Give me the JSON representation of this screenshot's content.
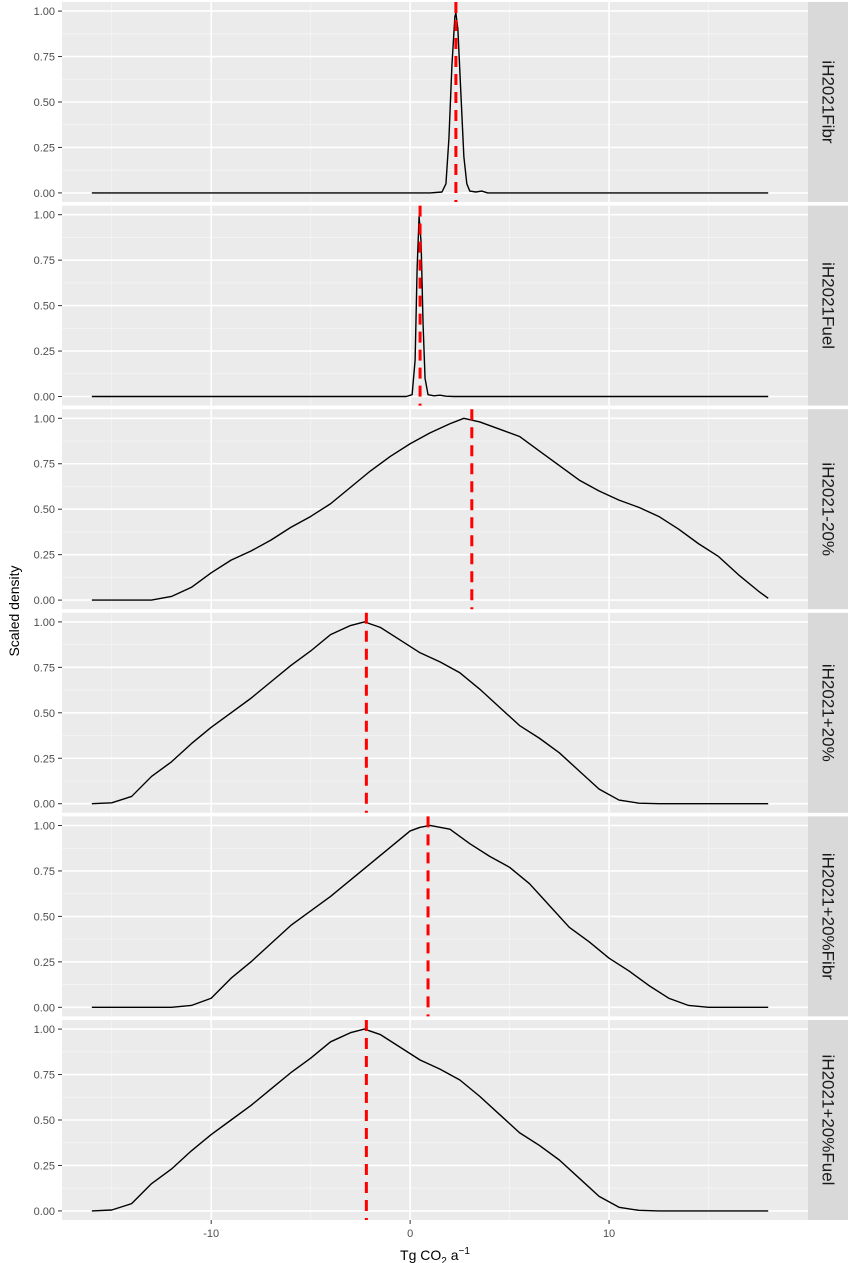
{
  "chart_data": {
    "type": "line",
    "ylabel": "Scaled density",
    "xlabel": {
      "base": "Tg CO",
      "sub": "2",
      "mid": " a",
      "sup": "−1"
    },
    "xlim": [
      -17.5,
      20
    ],
    "ylim": [
      -0.05,
      1.05
    ],
    "x_ticks": [
      -10,
      0,
      10
    ],
    "x_tick_labels": [
      "-10",
      "0",
      "10"
    ],
    "y_ticks": [
      0,
      0.25,
      0.5,
      0.75,
      1.0
    ],
    "y_tick_labels": [
      "0.00",
      "0.25",
      "0.50",
      "0.75",
      "1.00"
    ],
    "grid": true,
    "line_color": "#000000",
    "marker_color": "#ff0000",
    "panel_bg": "#ebebeb",
    "strip_bg": "#d9d9d9",
    "panels": [
      {
        "name": "iH2021Fibr",
        "marker_x": 2.3,
        "points": [
          [
            -16,
            0
          ],
          [
            1,
            0
          ],
          [
            1.6,
            0.005
          ],
          [
            1.8,
            0.05
          ],
          [
            1.95,
            0.3
          ],
          [
            2.1,
            0.7
          ],
          [
            2.25,
            0.97
          ],
          [
            2.3,
            0.99
          ],
          [
            2.4,
            0.9
          ],
          [
            2.55,
            0.55
          ],
          [
            2.7,
            0.2
          ],
          [
            2.85,
            0.05
          ],
          [
            3.0,
            0.01
          ],
          [
            3.3,
            0.005
          ],
          [
            3.6,
            0.01
          ],
          [
            3.9,
            0
          ],
          [
            18,
            0
          ]
        ]
      },
      {
        "name": "iH2021Fuel",
        "marker_x": 0.5,
        "points": [
          [
            -16,
            0
          ],
          [
            -0.2,
            0
          ],
          [
            0.1,
            0.01
          ],
          [
            0.25,
            0.2
          ],
          [
            0.35,
            0.7
          ],
          [
            0.45,
            0.99
          ],
          [
            0.55,
            0.85
          ],
          [
            0.65,
            0.4
          ],
          [
            0.75,
            0.1
          ],
          [
            0.9,
            0.01
          ],
          [
            1.2,
            0.004
          ],
          [
            1.5,
            0.007
          ],
          [
            1.8,
            0.002
          ],
          [
            2.2,
            0
          ],
          [
            18,
            0
          ]
        ]
      },
      {
        "name": "iH2021-20%",
        "marker_x": 3.1,
        "points": [
          [
            -16,
            0
          ],
          [
            -13,
            0
          ],
          [
            -12,
            0.02
          ],
          [
            -11,
            0.07
          ],
          [
            -10,
            0.15
          ],
          [
            -9,
            0.22
          ],
          [
            -8,
            0.27
          ],
          [
            -7,
            0.33
          ],
          [
            -6,
            0.4
          ],
          [
            -5,
            0.46
          ],
          [
            -4,
            0.53
          ],
          [
            -3,
            0.62
          ],
          [
            -2,
            0.71
          ],
          [
            -1,
            0.79
          ],
          [
            0,
            0.86
          ],
          [
            1,
            0.92
          ],
          [
            2,
            0.97
          ],
          [
            2.7,
            1.0
          ],
          [
            3.5,
            0.98
          ],
          [
            4.5,
            0.94
          ],
          [
            5.5,
            0.9
          ],
          [
            6.5,
            0.82
          ],
          [
            7.5,
            0.74
          ],
          [
            8.5,
            0.66
          ],
          [
            9.5,
            0.6
          ],
          [
            10.5,
            0.55
          ],
          [
            11.5,
            0.51
          ],
          [
            12.5,
            0.46
          ],
          [
            13.5,
            0.39
          ],
          [
            14.5,
            0.31
          ],
          [
            15.5,
            0.24
          ],
          [
            16.5,
            0.14
          ],
          [
            17.5,
            0.05
          ],
          [
            18,
            0.01
          ]
        ]
      },
      {
        "name": "iH2021+20%",
        "marker_x": -2.2,
        "points": [
          [
            -16,
            0
          ],
          [
            -15,
            0.005
          ],
          [
            -14,
            0.04
          ],
          [
            -13,
            0.15
          ],
          [
            -12,
            0.23
          ],
          [
            -11,
            0.33
          ],
          [
            -10,
            0.42
          ],
          [
            -9,
            0.5
          ],
          [
            -8,
            0.58
          ],
          [
            -7,
            0.67
          ],
          [
            -6,
            0.76
          ],
          [
            -5,
            0.84
          ],
          [
            -4,
            0.93
          ],
          [
            -3,
            0.98
          ],
          [
            -2.3,
            1.0
          ],
          [
            -1.5,
            0.97
          ],
          [
            -0.5,
            0.9
          ],
          [
            0.5,
            0.83
          ],
          [
            1.5,
            0.78
          ],
          [
            2.5,
            0.72
          ],
          [
            3.5,
            0.63
          ],
          [
            4.5,
            0.53
          ],
          [
            5.5,
            0.43
          ],
          [
            6.5,
            0.36
          ],
          [
            7.5,
            0.28
          ],
          [
            8.5,
            0.18
          ],
          [
            9.5,
            0.08
          ],
          [
            10.5,
            0.02
          ],
          [
            11.5,
            0.003
          ],
          [
            12.5,
            0
          ],
          [
            18,
            0
          ]
        ]
      },
      {
        "name": "iH2021+20%Fibr",
        "marker_x": 0.9,
        "points": [
          [
            -16,
            0
          ],
          [
            -12,
            0
          ],
          [
            -11,
            0.01
          ],
          [
            -10,
            0.05
          ],
          [
            -9,
            0.16
          ],
          [
            -8,
            0.25
          ],
          [
            -7,
            0.35
          ],
          [
            -6,
            0.45
          ],
          [
            -5,
            0.53
          ],
          [
            -4,
            0.61
          ],
          [
            -3,
            0.7
          ],
          [
            -2,
            0.79
          ],
          [
            -1,
            0.88
          ],
          [
            0,
            0.97
          ],
          [
            0.5,
            0.99
          ],
          [
            1,
            1.0
          ],
          [
            2,
            0.98
          ],
          [
            3,
            0.9
          ],
          [
            4,
            0.83
          ],
          [
            5,
            0.77
          ],
          [
            6,
            0.68
          ],
          [
            7,
            0.56
          ],
          [
            8,
            0.44
          ],
          [
            9,
            0.36
          ],
          [
            10,
            0.27
          ],
          [
            11,
            0.2
          ],
          [
            12,
            0.12
          ],
          [
            13,
            0.05
          ],
          [
            14,
            0.01
          ],
          [
            15,
            0
          ],
          [
            18,
            0
          ]
        ]
      },
      {
        "name": "iH2021+20%Fuel",
        "marker_x": -2.2,
        "points": [
          [
            -16,
            0
          ],
          [
            -15,
            0.005
          ],
          [
            -14,
            0.04
          ],
          [
            -13,
            0.15
          ],
          [
            -12,
            0.23
          ],
          [
            -11,
            0.33
          ],
          [
            -10,
            0.42
          ],
          [
            -9,
            0.5
          ],
          [
            -8,
            0.58
          ],
          [
            -7,
            0.67
          ],
          [
            -6,
            0.76
          ],
          [
            -5,
            0.84
          ],
          [
            -4,
            0.93
          ],
          [
            -3,
            0.98
          ],
          [
            -2.3,
            1.0
          ],
          [
            -1.5,
            0.97
          ],
          [
            -0.5,
            0.9
          ],
          [
            0.5,
            0.83
          ],
          [
            1.5,
            0.78
          ],
          [
            2.5,
            0.72
          ],
          [
            3.5,
            0.63
          ],
          [
            4.5,
            0.53
          ],
          [
            5.5,
            0.43
          ],
          [
            6.5,
            0.36
          ],
          [
            7.5,
            0.28
          ],
          [
            8.5,
            0.18
          ],
          [
            9.5,
            0.08
          ],
          [
            10.5,
            0.02
          ],
          [
            11.5,
            0.003
          ],
          [
            12.5,
            0
          ],
          [
            18,
            0
          ]
        ]
      }
    ]
  }
}
